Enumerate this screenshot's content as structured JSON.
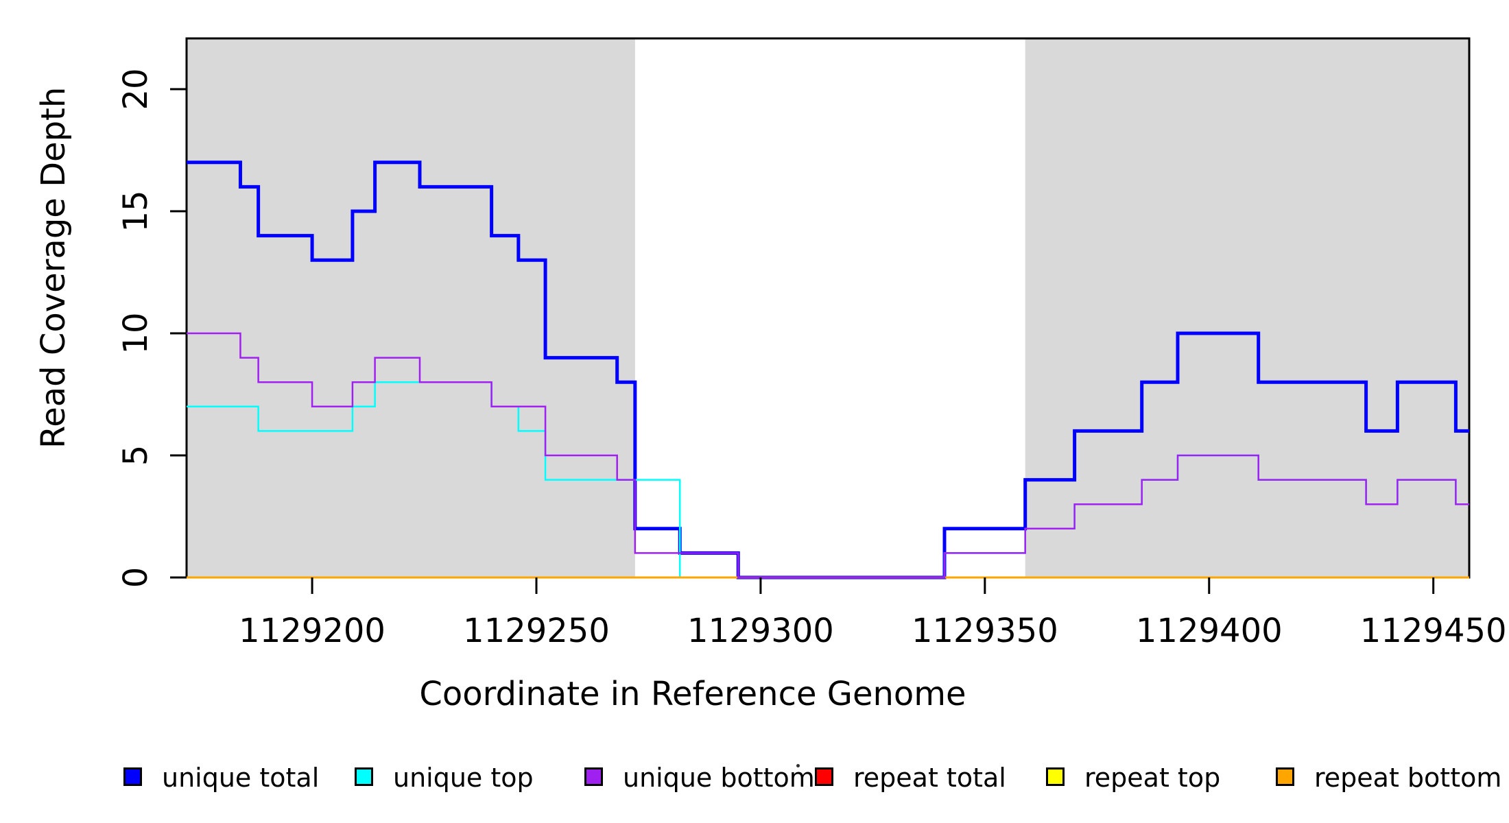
{
  "chart_data": {
    "type": "line",
    "subtype": "step",
    "title": "",
    "xlabel": "Coordinate in Reference Genome",
    "ylabel": "Read Coverage Depth",
    "xlim": [
      1129172,
      1129458
    ],
    "ylim": [
      0,
      22.1
    ],
    "x_ticks": [
      1129200,
      1129250,
      1129300,
      1129350,
      1129400,
      1129450
    ],
    "y_ticks": [
      0,
      5,
      10,
      15,
      20
    ],
    "grid": false,
    "axis_color": "#000000",
    "plot_background": "#FFFFFF",
    "background_regions": [
      {
        "name": "shaded-region-left",
        "x0": 1129172,
        "x1": 1129272,
        "color": "#D9D9D9"
      },
      {
        "name": "shaded-region-right",
        "x0": 1129359,
        "x1": 1129458,
        "color": "#D9D9D9"
      }
    ],
    "series": [
      {
        "name": "unique total",
        "color": "#0000FF",
        "width": 5,
        "points": [
          [
            1129172,
            17
          ],
          [
            1129184,
            16
          ],
          [
            1129188,
            14
          ],
          [
            1129200,
            13
          ],
          [
            1129209,
            15
          ],
          [
            1129214,
            17
          ],
          [
            1129224,
            16
          ],
          [
            1129240,
            14
          ],
          [
            1129246,
            13
          ],
          [
            1129252,
            9
          ],
          [
            1129268,
            8
          ],
          [
            1129272,
            2
          ],
          [
            1129282,
            1
          ],
          [
            1129295,
            0
          ],
          [
            1129341,
            2
          ],
          [
            1129359,
            4
          ],
          [
            1129370,
            6
          ],
          [
            1129385,
            8
          ],
          [
            1129393,
            10
          ],
          [
            1129411,
            8
          ],
          [
            1129435,
            6
          ],
          [
            1129442,
            8
          ],
          [
            1129455,
            6
          ]
        ]
      },
      {
        "name": "unique top",
        "color": "#00FFFF",
        "width": 2.5,
        "points": [
          [
            1129172,
            7
          ],
          [
            1129188,
            6
          ],
          [
            1129209,
            7
          ],
          [
            1129214,
            8
          ],
          [
            1129240,
            7
          ],
          [
            1129246,
            6
          ],
          [
            1129252,
            4
          ],
          [
            1129282,
            0
          ],
          [
            1129341,
            1
          ],
          [
            1129359,
            2
          ],
          [
            1129370,
            3
          ],
          [
            1129385,
            4
          ],
          [
            1129393,
            5
          ],
          [
            1129411,
            4
          ],
          [
            1129435,
            3
          ],
          [
            1129442,
            4
          ],
          [
            1129455,
            3
          ]
        ]
      },
      {
        "name": "unique bottom",
        "color": "#A020F0",
        "width": 2.5,
        "points": [
          [
            1129172,
            10
          ],
          [
            1129184,
            9
          ],
          [
            1129188,
            8
          ],
          [
            1129200,
            7
          ],
          [
            1129209,
            8
          ],
          [
            1129214,
            9
          ],
          [
            1129224,
            8
          ],
          [
            1129240,
            7
          ],
          [
            1129252,
            5
          ],
          [
            1129268,
            4
          ],
          [
            1129272,
            1
          ],
          [
            1129295,
            0
          ],
          [
            1129341,
            1
          ],
          [
            1129359,
            2
          ],
          [
            1129370,
            3
          ],
          [
            1129385,
            4
          ],
          [
            1129393,
            5
          ],
          [
            1129411,
            4
          ],
          [
            1129435,
            3
          ],
          [
            1129442,
            4
          ],
          [
            1129455,
            3
          ]
        ]
      },
      {
        "name": "repeat total",
        "color": "#FF0000",
        "width": 2,
        "points": [
          [
            1129172,
            0
          ]
        ]
      },
      {
        "name": "repeat top",
        "color": "#FFFF00",
        "width": 2,
        "points": [
          [
            1129172,
            0
          ]
        ]
      },
      {
        "name": "repeat bottom",
        "color": "#FFA500",
        "width": 3,
        "points": [
          [
            1129172,
            0
          ]
        ]
      }
    ],
    "draw_order": [
      "repeat total",
      "repeat top",
      "unique total",
      "unique top",
      "repeat bottom",
      "unique bottom"
    ],
    "legend": {
      "position": "bottom-outside",
      "items": [
        {
          "label": "unique total",
          "color": "#0000FF"
        },
        {
          "label": "unique top",
          "color": "#00FFFF"
        },
        {
          "label": "unique bottom",
          "color": "#A020F0"
        },
        {
          "label": "repeat total",
          "color": "#FF0000"
        },
        {
          "label": "repeat top",
          "color": "#FFFF00"
        },
        {
          "label": "repeat bottom",
          "color": "#FFA500"
        }
      ]
    },
    "artifact_mark": {
      "color": "#303030"
    }
  }
}
